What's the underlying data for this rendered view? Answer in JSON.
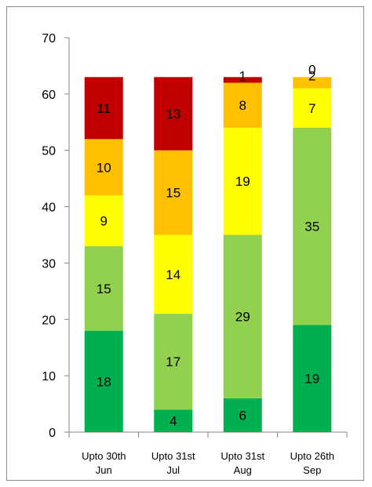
{
  "chart_data": {
    "type": "bar",
    "stacked": true,
    "categories": [
      [
        "Upto 30th",
        "Jun"
      ],
      [
        "Upto 31st",
        "Jul"
      ],
      [
        "Upto 31st",
        "Aug"
      ],
      [
        "Upto 26th",
        "Sep"
      ]
    ],
    "series": [
      {
        "color": "#00b050",
        "values": [
          18,
          4,
          6,
          19
        ]
      },
      {
        "color": "#92d050",
        "values": [
          15,
          17,
          29,
          35
        ]
      },
      {
        "color": "#ffff00",
        "values": [
          9,
          14,
          19,
          7
        ]
      },
      {
        "color": "#ffc000",
        "values": [
          10,
          15,
          8,
          2
        ]
      },
      {
        "color": "#c00000",
        "values": [
          11,
          13,
          1,
          0
        ]
      }
    ],
    "ylim": [
      0,
      70
    ],
    "yticks": [
      0,
      10,
      20,
      30,
      40,
      50,
      60,
      70
    ],
    "grid": false,
    "legend": "none"
  }
}
